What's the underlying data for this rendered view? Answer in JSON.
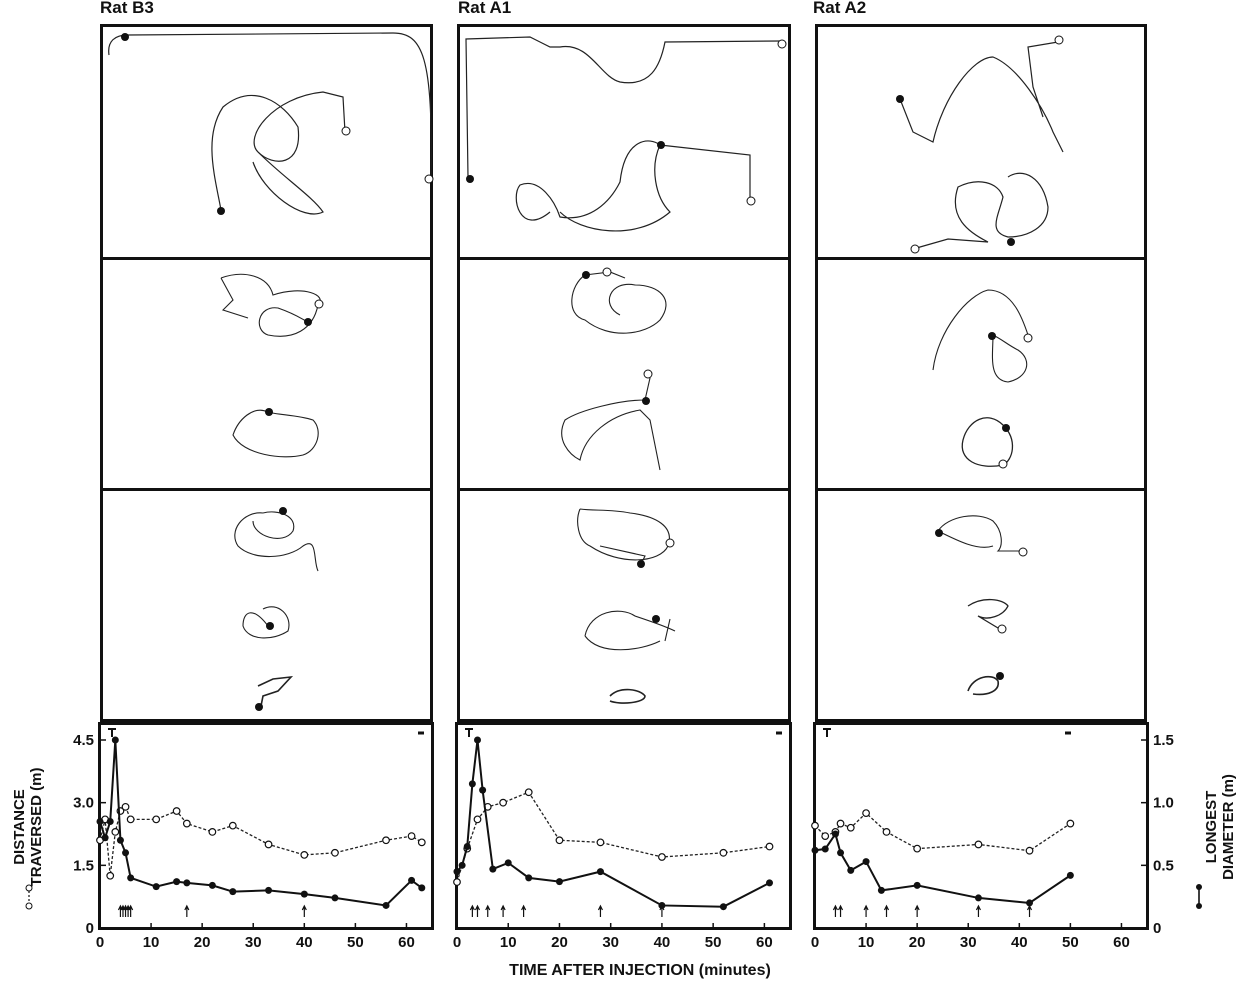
{
  "columns": [
    {
      "title": "Rat B3"
    },
    {
      "title": "Rat A1"
    },
    {
      "title": "Rat A2"
    }
  ],
  "chart_data": {
    "type": "line",
    "xlabel": "TIME AFTER INJECTION (minutes)",
    "ylabel_left": "DISTANCE TRAVERSED (m)",
    "ylabel_right": "LONGEST DIAMETER (m)",
    "ylabel_left_lines": [
      "DISTANCE",
      "TRAVERSED (m)"
    ],
    "ylabel_right_lines": [
      "LONGEST",
      "DIAMETER (m)"
    ],
    "x_ticks": [
      "0",
      "10",
      "20",
      "30",
      "40",
      "50",
      "60"
    ],
    "x_ticks_last": [
      "0",
      "10",
      "20",
      "30",
      "40",
      "50",
      "60"
    ],
    "y_left_ticks": [
      "0",
      "1.5",
      "3.0",
      "4.5"
    ],
    "y_right_ticks": [
      "0",
      "0.5",
      "1.0",
      "1.5"
    ],
    "xlim": [
      0,
      65
    ],
    "ylim_left": [
      0,
      4.5
    ],
    "ylim_right": [
      0,
      1.5
    ],
    "series_styles": {
      "distance": {
        "marker": "open-circle",
        "line": "dashed"
      },
      "diameter": {
        "marker": "filled-circle",
        "line": "solid"
      }
    },
    "panels": [
      {
        "rat": "Rat B3",
        "distance": [
          [
            0,
            2.1
          ],
          [
            1,
            2.6
          ],
          [
            2,
            1.25
          ],
          [
            3,
            2.3
          ],
          [
            4,
            2.8
          ],
          [
            5,
            2.9
          ],
          [
            6,
            2.6
          ],
          [
            11,
            2.6
          ],
          [
            15,
            2.8
          ],
          [
            17,
            2.5
          ],
          [
            22,
            2.3
          ],
          [
            26,
            2.45
          ],
          [
            33,
            2.0
          ],
          [
            40,
            1.75
          ],
          [
            46,
            1.8
          ],
          [
            56,
            2.1
          ],
          [
            61,
            2.2
          ],
          [
            63,
            2.05
          ]
        ],
        "diameter": [
          [
            0,
            0.85
          ],
          [
            1,
            0.72
          ],
          [
            2,
            0.85
          ],
          [
            3,
            1.5
          ],
          [
            4,
            0.7
          ],
          [
            5,
            0.6
          ],
          [
            6,
            0.4
          ],
          [
            11,
            0.33
          ],
          [
            15,
            0.37
          ],
          [
            17,
            0.36
          ],
          [
            22,
            0.34
          ],
          [
            26,
            0.29
          ],
          [
            33,
            0.3
          ],
          [
            40,
            0.27
          ],
          [
            46,
            0.24
          ],
          [
            56,
            0.18
          ],
          [
            61,
            0.38
          ],
          [
            63,
            0.32
          ]
        ],
        "arrows_x": [
          4,
          4.5,
          5,
          5.5,
          6,
          17,
          40
        ]
      },
      {
        "rat": "Rat A1",
        "distance": [
          [
            0,
            1.1
          ],
          [
            2,
            1.9
          ],
          [
            4,
            2.6
          ],
          [
            6,
            2.9
          ],
          [
            9,
            3.0
          ],
          [
            14,
            3.25
          ],
          [
            20,
            2.1
          ],
          [
            28,
            2.05
          ],
          [
            40,
            1.7
          ],
          [
            52,
            1.8
          ],
          [
            61,
            1.95
          ]
        ],
        "diameter": [
          [
            0,
            0.45
          ],
          [
            1,
            0.5
          ],
          [
            2,
            0.65
          ],
          [
            3,
            1.15
          ],
          [
            4,
            1.5
          ],
          [
            5,
            1.1
          ],
          [
            7,
            0.47
          ],
          [
            10,
            0.52
          ],
          [
            14,
            0.4
          ],
          [
            20,
            0.37
          ],
          [
            28,
            0.45
          ],
          [
            40,
            0.18
          ],
          [
            52,
            0.17
          ],
          [
            61,
            0.36
          ]
        ],
        "arrows_x": [
          3,
          4,
          6,
          9,
          13,
          28,
          40
        ]
      },
      {
        "rat": "Rat A2",
        "distance": [
          [
            0,
            2.45
          ],
          [
            2,
            2.2
          ],
          [
            4,
            2.3
          ],
          [
            5,
            2.5
          ],
          [
            7,
            2.4
          ],
          [
            10,
            2.75
          ],
          [
            14,
            2.3
          ],
          [
            20,
            1.9
          ],
          [
            32,
            2.0
          ],
          [
            42,
            1.85
          ],
          [
            50,
            2.5
          ]
        ],
        "diameter": [
          [
            0,
            0.62
          ],
          [
            2,
            0.63
          ],
          [
            4,
            0.75
          ],
          [
            5,
            0.6
          ],
          [
            7,
            0.46
          ],
          [
            10,
            0.53
          ],
          [
            13,
            0.3
          ],
          [
            20,
            0.34
          ],
          [
            32,
            0.24
          ],
          [
            42,
            0.2
          ],
          [
            50,
            0.42
          ]
        ],
        "arrows_x": [
          4,
          5,
          10,
          14,
          20,
          32,
          42
        ]
      }
    ]
  }
}
